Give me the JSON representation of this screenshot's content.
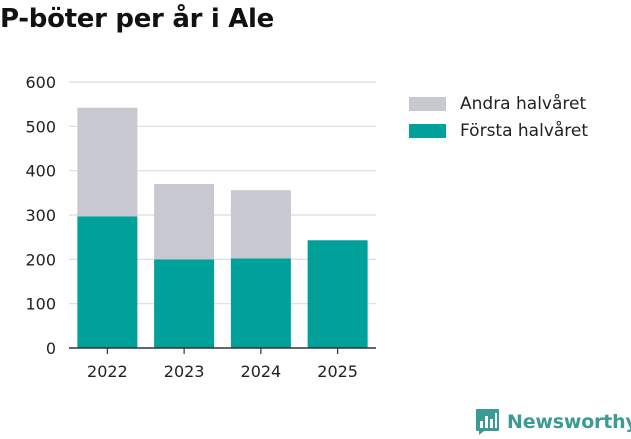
{
  "title": "P-böter per år i Ale",
  "brand": {
    "name": "Newsworthy",
    "icon": "newsworthy-bar-chart-icon",
    "color": "#3a9b94"
  },
  "colors": {
    "first_half": "#00a19a",
    "second_half": "#c8c8d1",
    "grid": "#dcdcdc",
    "axis": "#333333"
  },
  "legend": [
    {
      "label": "Andra halvåret",
      "color": "#c8c8d1"
    },
    {
      "label": "Första halvåret",
      "color": "#00a19a"
    }
  ],
  "chart_data": {
    "type": "bar",
    "stacked": true,
    "title": "P-böter per år i Ale",
    "xlabel": "",
    "ylabel": "",
    "categories": [
      "2022",
      "2023",
      "2024",
      "2025"
    ],
    "series": [
      {
        "name": "Första halvåret",
        "values": [
          297,
          200,
          202,
          243
        ]
      },
      {
        "name": "Andra halvåret",
        "values": [
          245,
          170,
          154,
          0
        ]
      }
    ],
    "ylim": [
      0,
      600
    ],
    "yticks": [
      0,
      100,
      200,
      300,
      400,
      500,
      600
    ],
    "grid": true,
    "legend_position": "right"
  }
}
